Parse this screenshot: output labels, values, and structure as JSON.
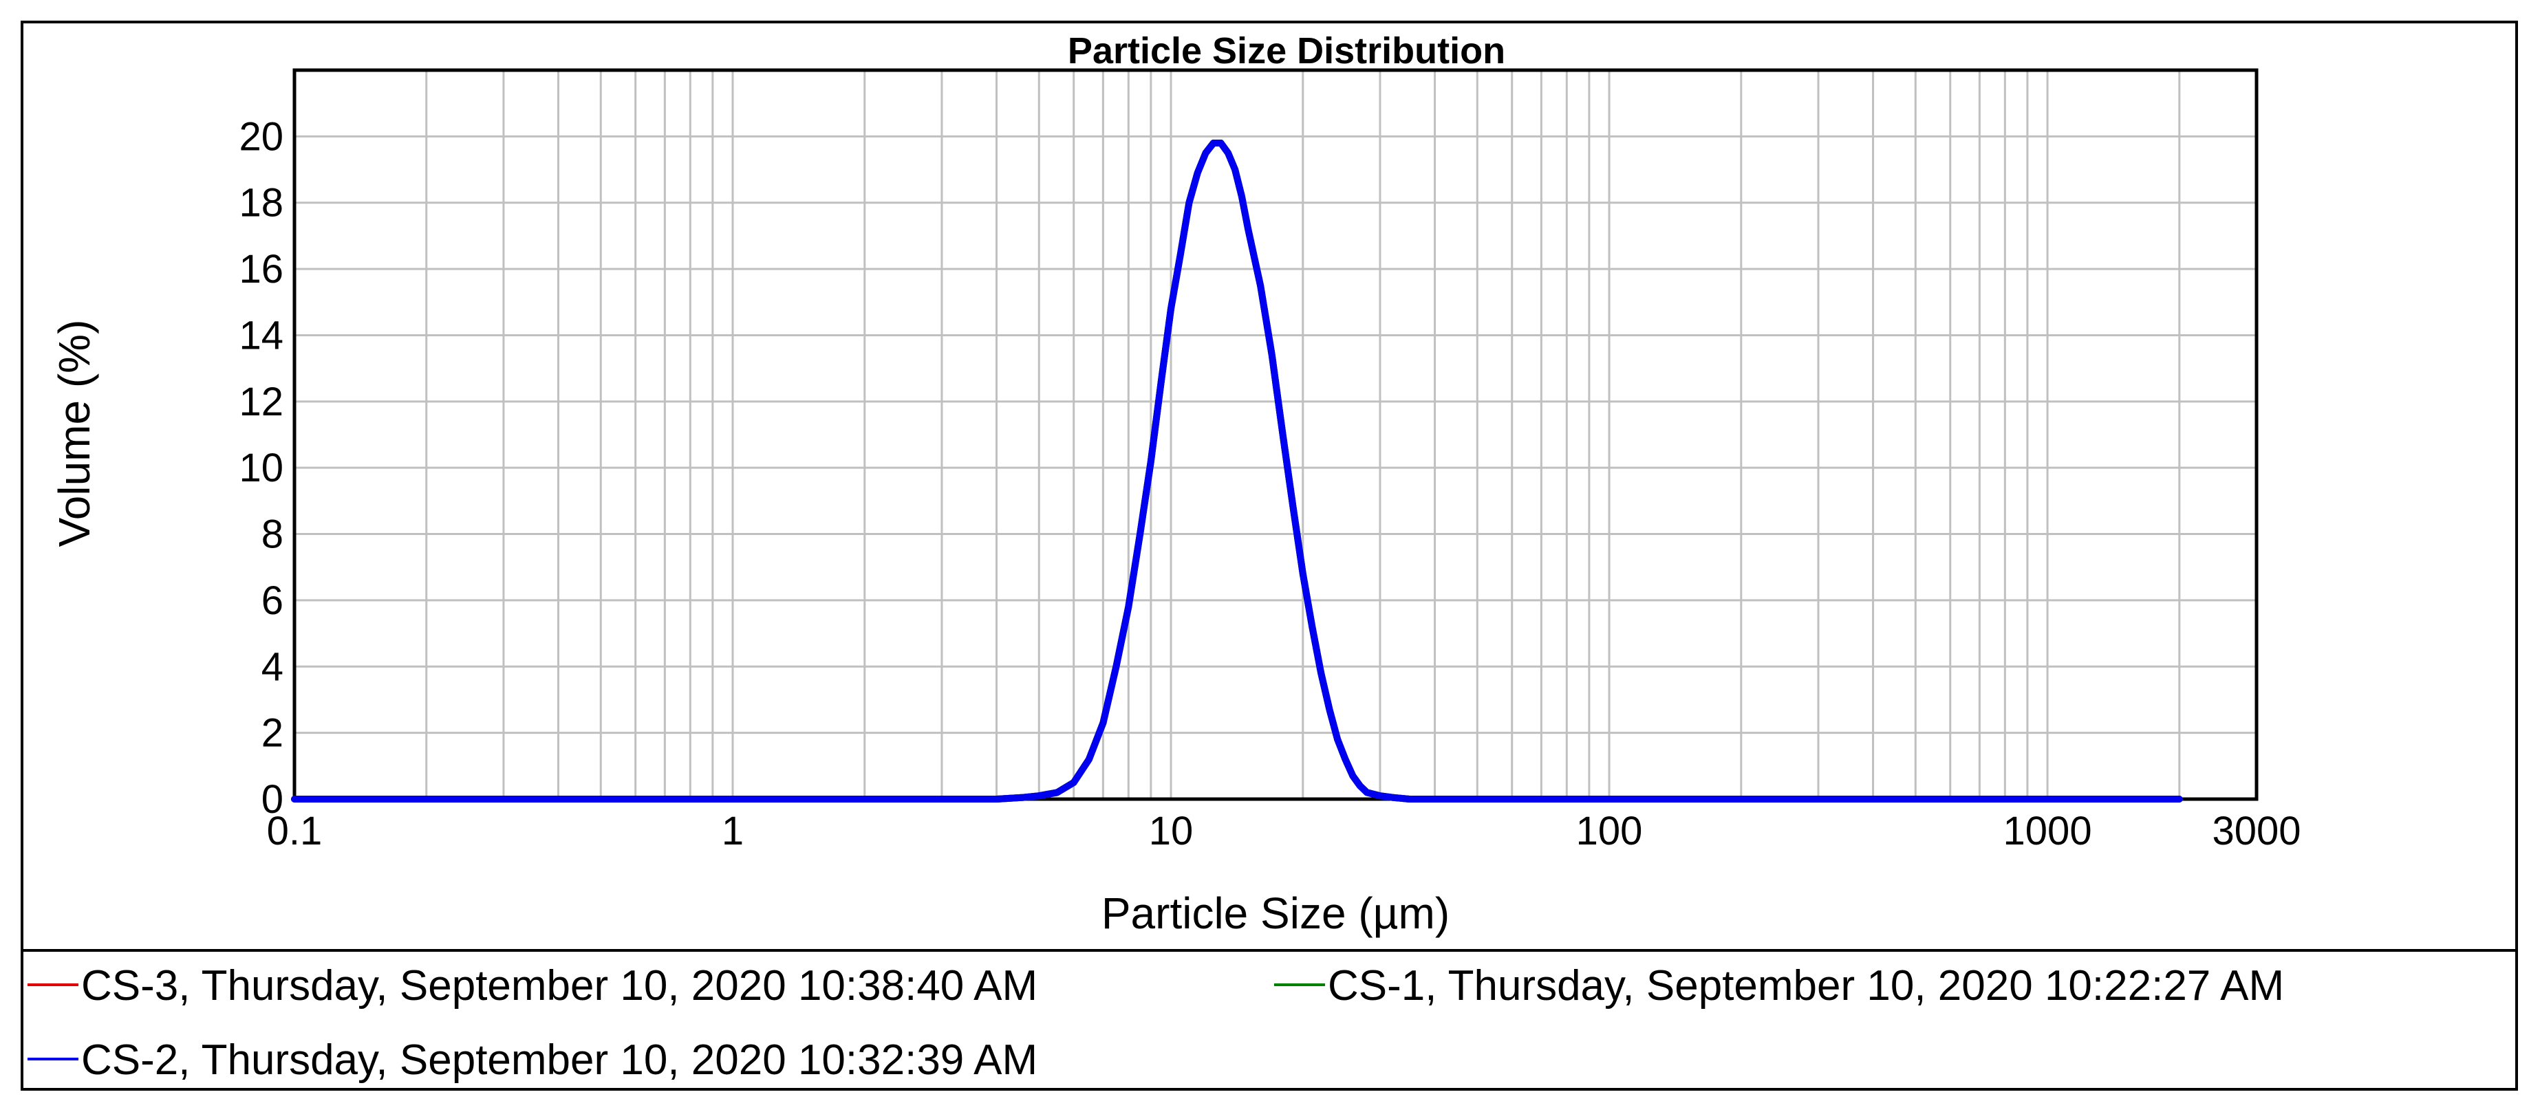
{
  "chart_data": {
    "type": "line",
    "title": "Particle Size Distribution",
    "xlabel": "Particle Size (µm)",
    "ylabel": "Volume (%)",
    "x_scale": "log",
    "xlim": [
      0.1,
      3000
    ],
    "ylim": [
      0,
      22
    ],
    "x_ticks": [
      {
        "value": 0.1,
        "label": "0.1"
      },
      {
        "value": 1,
        "label": "1"
      },
      {
        "value": 10,
        "label": "10"
      },
      {
        "value": 100,
        "label": "100"
      },
      {
        "value": 1000,
        "label": "1000"
      },
      {
        "value": 3000,
        "label": "3000"
      }
    ],
    "y_ticks": [
      {
        "value": 0,
        "label": "0"
      },
      {
        "value": 2,
        "label": "2"
      },
      {
        "value": 4,
        "label": "4"
      },
      {
        "value": 6,
        "label": "6"
      },
      {
        "value": 8,
        "label": "8"
      },
      {
        "value": 10,
        "label": "10"
      },
      {
        "value": 12,
        "label": "12"
      },
      {
        "value": 14,
        "label": "14"
      },
      {
        "value": 16,
        "label": "16"
      },
      {
        "value": 18,
        "label": "18"
      },
      {
        "value": 20,
        "label": "20"
      }
    ],
    "grid": true,
    "legend_position": "bottom",
    "series": [
      {
        "name": "CS-3, Thursday, September 10, 2020 10:38:40 AM",
        "color": "#e00000",
        "x": [
          0.1,
          0.5,
          1,
          2,
          3,
          4,
          4.6,
          5,
          5.5,
          6,
          6.5,
          7,
          7.5,
          8,
          8.5,
          9,
          9.5,
          10,
          10.5,
          11,
          11.5,
          12,
          12.5,
          13,
          13.5,
          14,
          14.5,
          15,
          16,
          17,
          18,
          19,
          20,
          21,
          22,
          23,
          24,
          25,
          26,
          27,
          28,
          30,
          32,
          35,
          40,
          100,
          1000,
          2000
        ],
        "y": [
          0,
          0,
          0,
          0,
          0,
          0,
          0.05,
          0.1,
          0.2,
          0.5,
          1.2,
          2.3,
          4.0,
          5.8,
          8.0,
          10.2,
          12.6,
          14.8,
          16.4,
          18.0,
          18.9,
          19.5,
          19.8,
          19.8,
          19.5,
          19.0,
          18.2,
          17.2,
          15.5,
          13.4,
          11.0,
          8.8,
          6.8,
          5.2,
          3.8,
          2.7,
          1.8,
          1.2,
          0.7,
          0.4,
          0.2,
          0.1,
          0.05,
          0,
          0,
          0,
          0,
          0
        ]
      },
      {
        "name": "CS-1, Thursday, September 10, 2020 10:22:27 AM",
        "color": "#008000",
        "x": [
          0.1,
          0.5,
          1,
          2,
          3,
          4,
          4.6,
          5,
          5.5,
          6,
          6.5,
          7,
          7.5,
          8,
          8.5,
          9,
          9.5,
          10,
          10.5,
          11,
          11.5,
          12,
          12.5,
          13,
          13.5,
          14,
          14.5,
          15,
          16,
          17,
          18,
          19,
          20,
          21,
          22,
          23,
          24,
          25,
          26,
          27,
          28,
          30,
          32,
          35,
          40,
          100,
          1000,
          2000
        ],
        "y": [
          0,
          0,
          0,
          0,
          0,
          0,
          0.05,
          0.1,
          0.2,
          0.5,
          1.2,
          2.3,
          4.0,
          5.8,
          8.0,
          10.2,
          12.6,
          14.8,
          16.4,
          18.0,
          18.9,
          19.5,
          19.8,
          19.8,
          19.5,
          19.0,
          18.2,
          17.2,
          15.5,
          13.4,
          11.0,
          8.8,
          6.8,
          5.2,
          3.8,
          2.7,
          1.8,
          1.2,
          0.7,
          0.4,
          0.2,
          0.1,
          0.05,
          0,
          0,
          0,
          0,
          0
        ]
      },
      {
        "name": "CS-2, Thursday, September 10, 2020 10:32:39 AM",
        "color": "#0000f0",
        "x": [
          0.1,
          0.5,
          1,
          2,
          3,
          4,
          4.6,
          5,
          5.5,
          6,
          6.5,
          7,
          7.5,
          8,
          8.5,
          9,
          9.5,
          10,
          10.5,
          11,
          11.5,
          12,
          12.5,
          13,
          13.5,
          14,
          14.5,
          15,
          16,
          17,
          18,
          19,
          20,
          21,
          22,
          23,
          24,
          25,
          26,
          27,
          28,
          30,
          32,
          35,
          40,
          100,
          1000,
          2000
        ],
        "y": [
          0,
          0,
          0,
          0,
          0,
          0,
          0.05,
          0.1,
          0.2,
          0.5,
          1.2,
          2.3,
          4.0,
          5.8,
          8.0,
          10.2,
          12.6,
          14.8,
          16.4,
          18.0,
          18.9,
          19.5,
          19.8,
          19.8,
          19.5,
          19.0,
          18.2,
          17.2,
          15.5,
          13.4,
          11.0,
          8.8,
          6.8,
          5.2,
          3.8,
          2.7,
          1.8,
          1.2,
          0.7,
          0.4,
          0.2,
          0.1,
          0.05,
          0,
          0,
          0,
          0,
          0
        ]
      }
    ],
    "legend_order": [
      0,
      1,
      2
    ]
  }
}
